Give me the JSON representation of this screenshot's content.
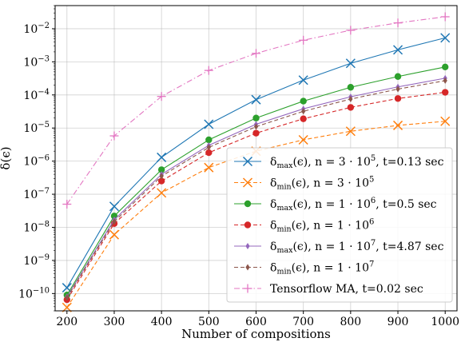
{
  "chart_data": {
    "type": "line",
    "xlabel": "Number of compositions",
    "ylabel": "δ(ϵ)",
    "yscale": "log",
    "ylim": [
      3e-11,
      0.05
    ],
    "xlim": [
      175,
      1025
    ],
    "grid": true,
    "legend_position": "lower-right",
    "x": [
      200,
      300,
      400,
      500,
      600,
      700,
      800,
      900,
      1000
    ],
    "x_ticks": [
      "200",
      "300",
      "400",
      "500",
      "600",
      "700",
      "800",
      "900",
      "1000"
    ],
    "y_ticks": [
      {
        "value": 1e-10,
        "base": "10",
        "exp": "−10"
      },
      {
        "value": 1e-09,
        "base": "10",
        "exp": "−9"
      },
      {
        "value": 1e-08,
        "base": "10",
        "exp": "−8"
      },
      {
        "value": 1e-07,
        "base": "10",
        "exp": "−7"
      },
      {
        "value": 1e-06,
        "base": "10",
        "exp": "−6"
      },
      {
        "value": 1e-05,
        "base": "10",
        "exp": "−5"
      },
      {
        "value": 0.0001,
        "base": "10",
        "exp": "−4"
      },
      {
        "value": 0.001,
        "base": "10",
        "exp": "−3"
      },
      {
        "value": 0.01,
        "base": "10",
        "exp": "−2"
      }
    ],
    "series": [
      {
        "legend": {
          "pre": "δ",
          "sub": "max",
          "post": "(ϵ), n = 3 · 10",
          "sup": "5",
          "tail": ", t=0.13 sec"
        },
        "color": "#1f77b4",
        "linestyle": "solid",
        "marker": "x",
        "values": [
          1.5e-10,
          4.3e-08,
          1.3e-06,
          1.3e-05,
          7.2e-05,
          0.00028,
          0.0009,
          0.0023,
          0.0053
        ]
      },
      {
        "legend": {
          "pre": "δ",
          "sub": "min",
          "post": "(ϵ), n = 3 · 10",
          "sup": "5",
          "tail": ""
        },
        "color": "#ff7f0e",
        "linestyle": "dashed",
        "marker": "x",
        "values": [
          3.8e-11,
          6e-09,
          1.1e-07,
          6.4e-07,
          2e-06,
          4.4e-06,
          8e-06,
          1.2e-05,
          1.6e-05
        ]
      },
      {
        "legend": {
          "pre": "δ",
          "sub": "max",
          "post": "(ϵ), n = 1 · 10",
          "sup": "6",
          "tail": ", t=0.5 sec"
        },
        "color": "#2ca02c",
        "linestyle": "solid",
        "marker": "circle",
        "values": [
          9e-11,
          2.2e-08,
          5.5e-07,
          4.4e-06,
          2e-05,
          6.5e-05,
          0.00017,
          0.00036,
          0.0007
        ]
      },
      {
        "legend": {
          "pre": "δ",
          "sub": "min",
          "post": "(ϵ), n = 1 · 10",
          "sup": "6",
          "tail": ""
        },
        "color": "#d62728",
        "linestyle": "dashed",
        "marker": "circle",
        "values": [
          6.5e-11,
          1.3e-08,
          2.5e-07,
          1.8e-06,
          7e-06,
          1.9e-05,
          4.2e-05,
          7.8e-05,
          0.00012
        ]
      },
      {
        "legend": {
          "pre": "δ",
          "sub": "max",
          "post": "(ϵ), n = 1 · 10",
          "sup": "7",
          "tail": ", t=4.87 sec"
        },
        "color": "#9467bd",
        "linestyle": "solid",
        "marker": "diamond",
        "values": [
          8e-11,
          1.7e-08,
          4e-07,
          3e-06,
          1.3e-05,
          3.8e-05,
          8.8e-05,
          0.000175,
          0.00032
        ]
      },
      {
        "legend": {
          "pre": "δ",
          "sub": "min",
          "post": "(ϵ), n = 1 · 10",
          "sup": "7",
          "tail": ""
        },
        "color": "#8c564b",
        "linestyle": "dashed",
        "marker": "diamond",
        "values": [
          7.5e-11,
          1.5e-08,
          3.5e-07,
          2.6e-06,
          1.1e-05,
          3.2e-05,
          7.5e-05,
          0.00015,
          0.00027
        ]
      },
      {
        "legend": {
          "pre": "Tensorflow MA, t=0.02 sec",
          "sub": "",
          "post": "",
          "sup": "",
          "tail": ""
        },
        "color": "#e377c2",
        "linestyle": "dashdot",
        "marker": "plus",
        "values": [
          5e-08,
          5.8e-06,
          9e-05,
          0.00055,
          0.0018,
          0.0045,
          0.009,
          0.015,
          0.023
        ]
      }
    ]
  }
}
